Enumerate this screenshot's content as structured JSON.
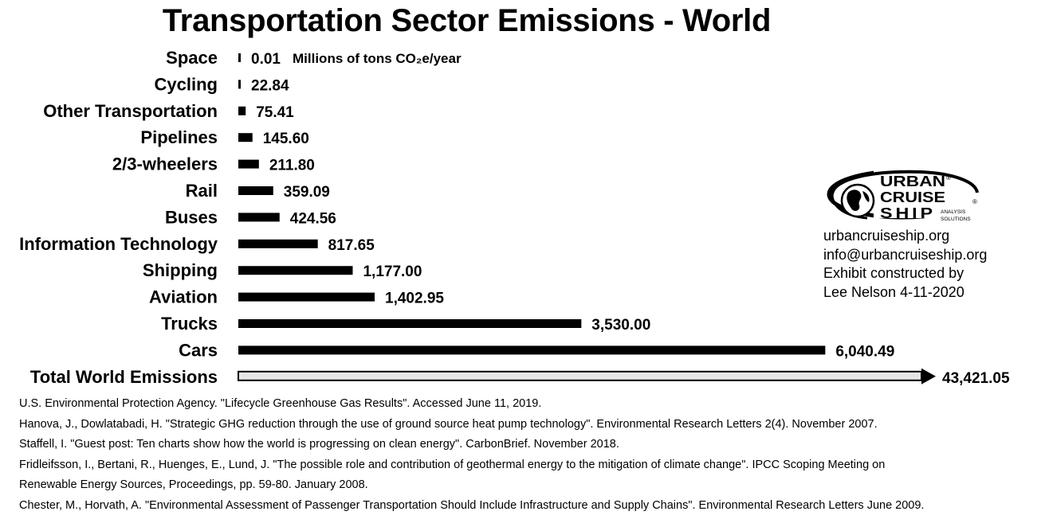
{
  "chart_data": {
    "type": "bar",
    "orientation": "horizontal",
    "title": "Transportation Sector Emissions - World",
    "unit_label": "Millions of tons CO₂e/year",
    "categories": [
      "Space",
      "Cycling",
      "Other Transportation",
      "Pipelines",
      "2/3-wheelers",
      "Rail",
      "Buses",
      "Information Technology",
      "Shipping",
      "Aviation",
      "Trucks",
      "Cars",
      "Total World Emissions"
    ],
    "values": [
      0.01,
      22.84,
      75.41,
      145.6,
      211.8,
      359.09,
      424.56,
      817.65,
      1177.0,
      1402.95,
      3530.0,
      6040.49,
      43421.05
    ],
    "value_labels": [
      "0.01",
      "22.84",
      "75.41",
      "145.60",
      "211.80",
      "359.09",
      "424.56",
      "817.65",
      "1,177.00",
      "1,402.95",
      "3,530.00",
      "6,040.49",
      "43,421.05"
    ],
    "bar_color": "#000000",
    "total_bar_color": "#e6e6e6",
    "total_bar_truncated": true,
    "grid": false,
    "legend": "none"
  },
  "logo": {
    "line1": "URBAN",
    "line2": "CRUISE",
    "line3": "SHIP",
    "tag1": "ANALYSIS",
    "tag2": "SOLUTIONS",
    "mark": "®"
  },
  "contact": {
    "website": "urbancruiseship.org",
    "email": "info@urbancruiseship.org",
    "credit1": "Exhibit constructed by",
    "credit2": "Lee Nelson 4-11-2020"
  },
  "references": [
    "U.S. Environmental Protection Agency. \"Lifecycle Greenhouse Gas Results\". Accessed June 11, 2019.",
    "Hanova, J., Dowlatabadi, H. \"Strategic GHG reduction through the use of ground source heat pump technology\". Environmental Research Letters 2(4). November 2007.",
    "Staffell, I. \"Guest post: Ten charts show how the world is progressing on clean energy\". CarbonBrief. November 2018.",
    "Fridleifsson, I., Bertani, R., Huenges, E., Lund, J. \"The possible role and contribution of geothermal energy to the mitigation of climate change\". IPCC Scoping Meeting on",
    "Renewable Energy Sources, Proceedings, pp. 59-80. January 2008.",
    "Chester, M., Horvath, A. \"Environmental Assessment of Passenger Transportation Should Include Infrastructure and Supply Chains\". Environmental Research Letters June 2009."
  ]
}
